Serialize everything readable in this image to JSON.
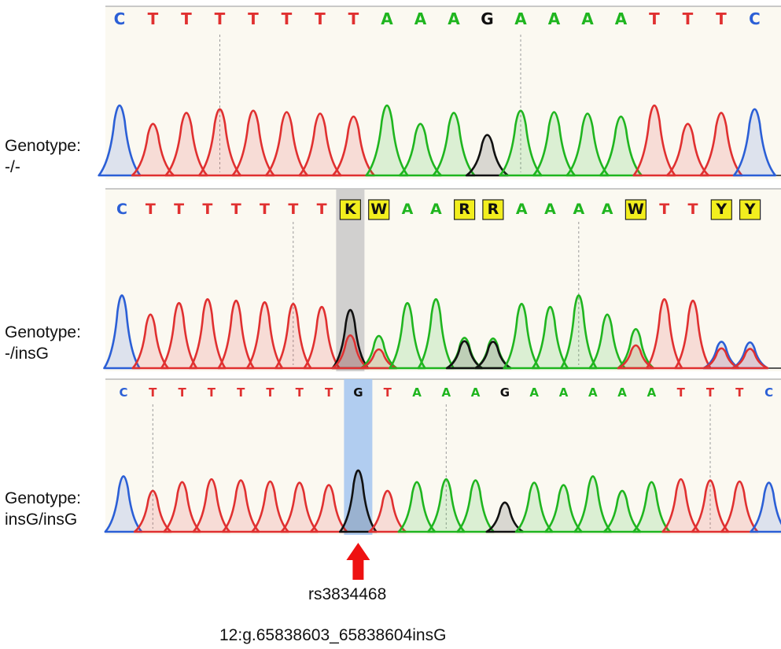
{
  "colors": {
    "A": "#1fb51f",
    "C": "#2b5fd6",
    "G": "#111111",
    "T": "#e03030",
    "iupac_fill": "#f2ee1e",
    "panel_bg": "#fbf9f1",
    "highlight_gray": "#c9c9c9",
    "highlight_blue": "#a9c8ef",
    "arrow": "#ee1111"
  },
  "panels": [
    {
      "name": "panel-homozygous-wild",
      "genotype_line1": "Genotype:",
      "genotype_line2": "-/-",
      "bases": [
        "C",
        "T",
        "T",
        "T",
        "T",
        "T",
        "T",
        "T",
        "A",
        "A",
        "A",
        "G",
        "A",
        "A",
        "A",
        "A",
        "T",
        "T",
        "T",
        "C"
      ],
      "boxed": [],
      "highlight": null
    },
    {
      "name": "panel-heterozygous",
      "genotype_line1": "Genotype:",
      "genotype_line2": "-/insG",
      "bases": [
        "C",
        "T",
        "T",
        "T",
        "T",
        "T",
        "T",
        "T",
        "K",
        "W",
        "A",
        "A",
        "R",
        "R",
        "A",
        "A",
        "A",
        "A",
        "W",
        "T",
        "T",
        "Y",
        "Y"
      ],
      "boxed": [
        8,
        9,
        12,
        13,
        18,
        21,
        22
      ],
      "highlight": "gray"
    },
    {
      "name": "panel-homozygous-insertion",
      "genotype_line1": "Genotype:",
      "genotype_line2": "insG/insG",
      "bases": [
        "C",
        "T",
        "T",
        "T",
        "T",
        "T",
        "T",
        "T",
        "G",
        "T",
        "A",
        "A",
        "A",
        "G",
        "A",
        "A",
        "A",
        "A",
        "A",
        "T",
        "T",
        "T",
        "C"
      ],
      "boxed": [],
      "highlight": "blue"
    }
  ],
  "variant": {
    "rsid": "rs3834468",
    "hgvs": "12:g.65838603_65838604insG"
  }
}
